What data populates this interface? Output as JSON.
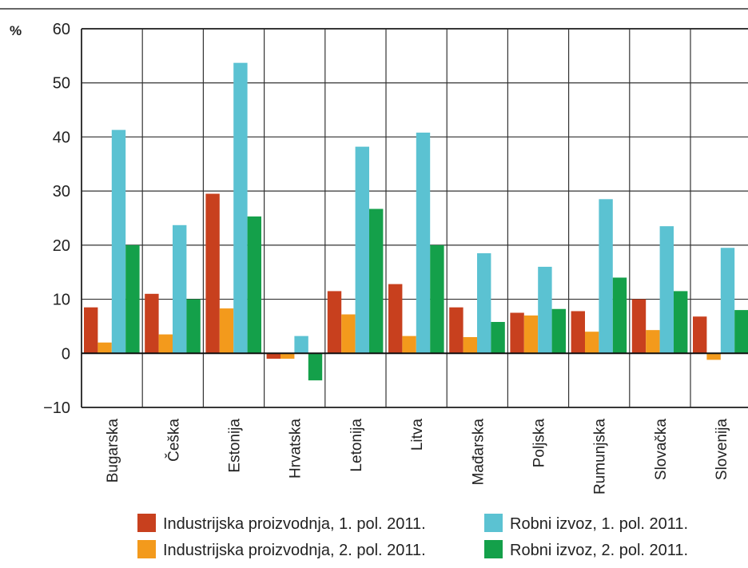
{
  "chart_data": {
    "type": "bar",
    "unit_label": "%",
    "ylim": [
      -10,
      60
    ],
    "yticks": [
      -10,
      0,
      10,
      20,
      30,
      40,
      50,
      60
    ],
    "grid": true,
    "legend_position": "bottom",
    "categories": [
      "Bugarska",
      "Češka",
      "Estonija",
      "Hrvatska",
      "Letonija",
      "Litva",
      "Mađarska",
      "Poljska",
      "Rumunjska",
      "Slovačka",
      "Slovenija"
    ],
    "series": [
      {
        "name": "Industrijska proizvodnja, 1. pol. 2011.",
        "color": "#c8401e",
        "values": [
          8.5,
          11,
          29.5,
          -1,
          11.5,
          12.8,
          8.5,
          7.5,
          7.8,
          10,
          6.8
        ]
      },
      {
        "name": "Industrijska proizvodnja, 2. pol. 2011.",
        "color": "#f39a1c",
        "values": [
          2,
          3.5,
          8.3,
          -1,
          7.2,
          3.2,
          3,
          7,
          4,
          4.3,
          -1.2
        ]
      },
      {
        "name": "Robni izvoz, 1. pol. 2011.",
        "color": "#5bc2d2",
        "values": [
          41.3,
          23.7,
          53.7,
          3.2,
          38.2,
          40.8,
          18.5,
          16,
          28.5,
          23.5,
          19.5
        ]
      },
      {
        "name": "Robni izvoz, 2. pol. 2011.",
        "color": "#14a04a",
        "values": [
          20,
          10,
          25.3,
          -5,
          26.7,
          20,
          5.8,
          8.2,
          14,
          11.5,
          8
        ]
      }
    ]
  }
}
